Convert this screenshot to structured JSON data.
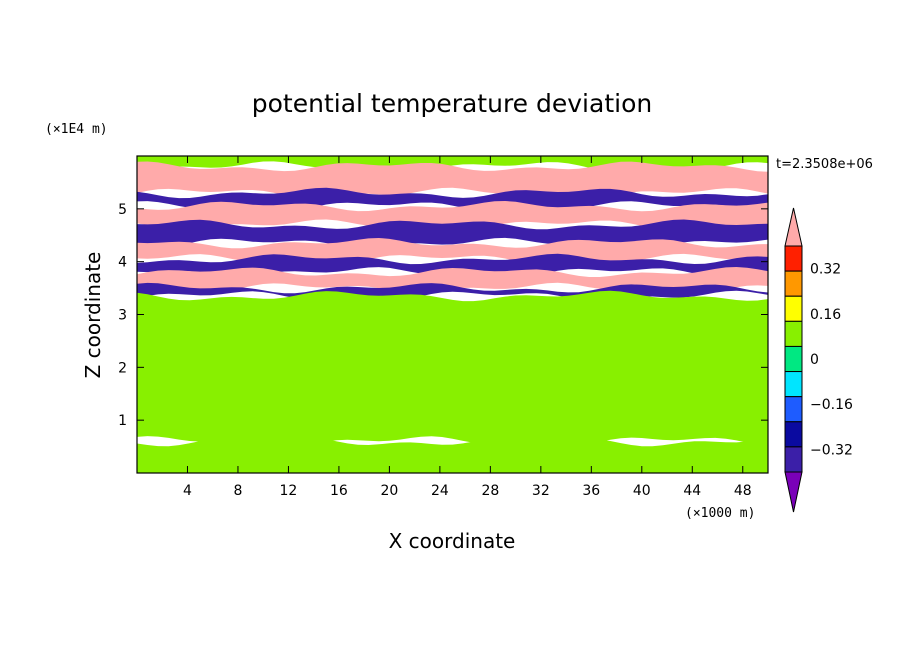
{
  "chart_data": {
    "type": "heatmap",
    "title": "potential temperature deviation",
    "xlabel": "X coordinate",
    "ylabel": "Z coordinate",
    "x_unit": "(×1000 m)",
    "y_unit": "(×1E4 m)",
    "time_label": "t=2.3508e+06",
    "xlim": [
      0,
      50
    ],
    "ylim": [
      0,
      6
    ],
    "x_ticks": [
      4,
      8,
      12,
      16,
      20,
      24,
      28,
      32,
      36,
      40,
      44,
      48
    ],
    "y_ticks": [
      1,
      2,
      3,
      4,
      5
    ],
    "colorbar": {
      "levels": [
        -0.4,
        -0.32,
        -0.24,
        -0.16,
        -0.08,
        0,
        0.08,
        0.16,
        0.24,
        0.32,
        0.4
      ],
      "tick_values": [
        0.32,
        0.16,
        0,
        -0.16,
        -0.32
      ],
      "tick_labels": [
        "0.32",
        "0.16",
        "0",
        "−0.16",
        "−0.32"
      ],
      "colors": [
        "#7a00b8",
        "#3b1fa8",
        "#0a0aa0",
        "#1e5cff",
        "#00e5ff",
        "#00e882",
        "#88f000",
        "#ffff00",
        "#ff9800",
        "#ff2000",
        "#ffaaaa"
      ],
      "extend": "both"
    },
    "layers": [
      {
        "z_range": [
          5.8,
          6.0
        ],
        "value": 0.04
      },
      {
        "z_range": [
          5.3,
          5.8
        ],
        "value": 0.45
      },
      {
        "z_range": [
          5.05,
          5.3
        ],
        "value": -0.36
      },
      {
        "z_range": [
          4.7,
          5.05
        ],
        "value": 0.42
      },
      {
        "z_range": [
          4.35,
          4.7
        ],
        "value": -0.38
      },
      {
        "z_range": [
          4.05,
          4.35
        ],
        "value": 0.43
      },
      {
        "z_range": [
          3.8,
          4.05
        ],
        "value": -0.36
      },
      {
        "z_range": [
          3.5,
          3.8
        ],
        "value": 0.42
      },
      {
        "z_range": [
          3.35,
          3.5
        ],
        "value": -0.36
      },
      {
        "z_range": [
          0.6,
          3.35
        ],
        "value": 0.06
      },
      {
        "z_range": [
          0.0,
          0.6
        ],
        "value": 0.02
      }
    ]
  }
}
